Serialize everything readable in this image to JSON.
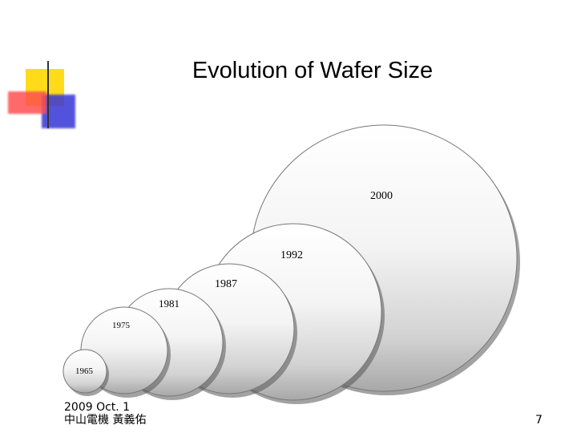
{
  "slide": {
    "title": "Evolution of Wafer Size",
    "footer": {
      "date": "2009 Oct. 1",
      "author": "中山電機 黃義佑"
    },
    "page_number": "7"
  },
  "wafers": [
    {
      "year": "1965"
    },
    {
      "year": "1975"
    },
    {
      "year": "1981"
    },
    {
      "year": "1987"
    },
    {
      "year": "1992"
    },
    {
      "year": "2000"
    }
  ],
  "colors": {
    "deco_yellow": "#FFD700",
    "deco_red": "#FF5050",
    "deco_blue": "#3535D8",
    "rule": "#333333"
  }
}
